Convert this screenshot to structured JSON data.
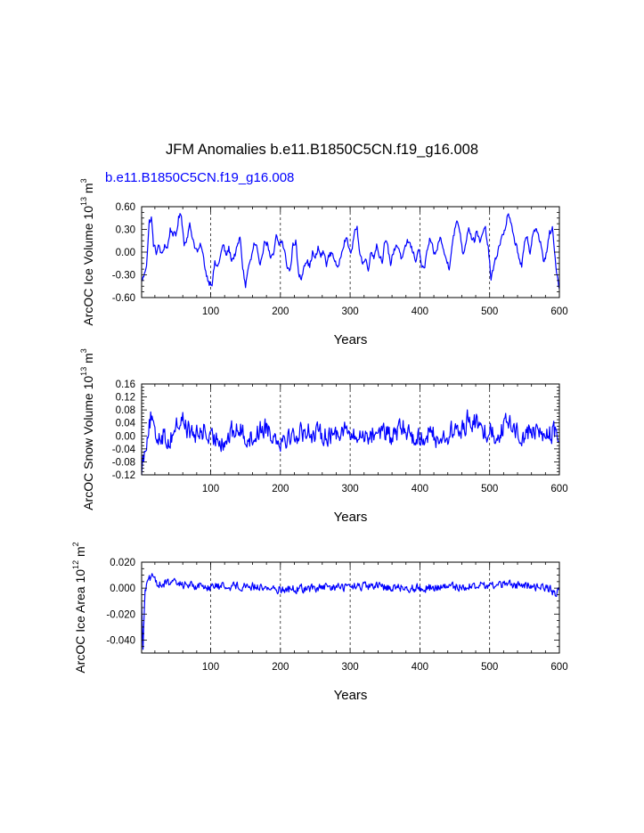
{
  "page": {
    "title": "JFM Anomalies b.e11.B1850C5CN.f19_g16.008",
    "subtitle": "b.e11.B1850C5CN.f19_g16.008"
  },
  "colors": {
    "series": "#0000ff",
    "axis": "#000000"
  },
  "chart_data": [
    {
      "type": "line",
      "name": "ice-volume",
      "ylabel_text": "ArcOC Ice Volume 10",
      "ylabel_exp": "13",
      "ylabel_unit": " m",
      "ylabel_unit_exp": "3",
      "xlabel": "Years",
      "xlim": [
        1,
        600
      ],
      "ylim": [
        -0.6,
        0.6
      ],
      "xticks": [
        100,
        200,
        300,
        400,
        500,
        600
      ],
      "xtick_labels": [
        "100",
        "200",
        "300",
        "400",
        "500",
        "600"
      ],
      "yticks": [
        -0.6,
        -0.3,
        0.0,
        0.3,
        0.6
      ],
      "ytick_labels": [
        "-0.60",
        "-0.30",
        "0.00",
        "0.30",
        "0.60"
      ],
      "gridlines_x": [
        100,
        200,
        300,
        400,
        500
      ],
      "anchors": [
        [
          1,
          -0.38
        ],
        [
          5,
          -0.3
        ],
        [
          8,
          -0.15
        ],
        [
          12,
          0.4
        ],
        [
          15,
          0.45
        ],
        [
          18,
          0.1
        ],
        [
          22,
          0.0
        ],
        [
          26,
          0.08
        ],
        [
          30,
          -0.05
        ],
        [
          34,
          0.1
        ],
        [
          38,
          0.05
        ],
        [
          42,
          0.3
        ],
        [
          46,
          0.25
        ],
        [
          50,
          0.2
        ],
        [
          54,
          0.45
        ],
        [
          58,
          0.5
        ],
        [
          62,
          0.1
        ],
        [
          66,
          0.2
        ],
        [
          70,
          0.35
        ],
        [
          74,
          0.2
        ],
        [
          78,
          0.05
        ],
        [
          82,
          0.0
        ],
        [
          86,
          0.1
        ],
        [
          90,
          -0.1
        ],
        [
          94,
          -0.3
        ],
        [
          98,
          -0.4
        ],
        [
          102,
          -0.4
        ],
        [
          106,
          -0.15
        ],
        [
          110,
          -0.2
        ],
        [
          114,
          -0.05
        ],
        [
          118,
          0.1
        ],
        [
          122,
          -0.05
        ],
        [
          126,
          0.05
        ],
        [
          130,
          -0.1
        ],
        [
          134,
          -0.05
        ],
        [
          138,
          0.05
        ],
        [
          142,
          0.2
        ],
        [
          146,
          -0.2
        ],
        [
          150,
          -0.45
        ],
        [
          154,
          -0.2
        ],
        [
          158,
          -0.1
        ],
        [
          162,
          0.1
        ],
        [
          166,
          0.05
        ],
        [
          170,
          -0.2
        ],
        [
          174,
          0.0
        ],
        [
          178,
          0.15
        ],
        [
          182,
          0.1
        ],
        [
          186,
          -0.1
        ],
        [
          190,
          -0.05
        ],
        [
          194,
          0.2
        ],
        [
          198,
          0.1
        ],
        [
          202,
          0.15
        ],
        [
          206,
          0.0
        ],
        [
          210,
          -0.2
        ],
        [
          214,
          -0.25
        ],
        [
          218,
          0.1
        ],
        [
          222,
          0.15
        ],
        [
          226,
          -0.3
        ],
        [
          230,
          -0.35
        ],
        [
          234,
          -0.15
        ],
        [
          238,
          -0.1
        ],
        [
          242,
          -0.2
        ],
        [
          246,
          0.0
        ],
        [
          250,
          -0.1
        ],
        [
          254,
          0.05
        ],
        [
          258,
          -0.05
        ],
        [
          262,
          0.0
        ],
        [
          266,
          -0.15
        ],
        [
          270,
          -0.05
        ],
        [
          274,
          0.0
        ],
        [
          278,
          -0.1
        ],
        [
          282,
          -0.25
        ],
        [
          286,
          -0.05
        ],
        [
          290,
          0.1
        ],
        [
          294,
          0.2
        ],
        [
          298,
          0.05
        ],
        [
          302,
          0.0
        ],
        [
          306,
          0.25
        ],
        [
          310,
          0.3
        ],
        [
          314,
          0.0
        ],
        [
          318,
          -0.15
        ],
        [
          322,
          -0.1
        ],
        [
          326,
          -0.2
        ],
        [
          330,
          0.0
        ],
        [
          334,
          -0.05
        ],
        [
          338,
          0.1
        ],
        [
          342,
          -0.05
        ],
        [
          346,
          -0.1
        ],
        [
          350,
          0.15
        ],
        [
          354,
          0.05
        ],
        [
          358,
          -0.15
        ],
        [
          362,
          0.0
        ],
        [
          366,
          0.1
        ],
        [
          370,
          0.05
        ],
        [
          374,
          -0.1
        ],
        [
          378,
          0.0
        ],
        [
          382,
          0.15
        ],
        [
          386,
          0.1
        ],
        [
          390,
          0.0
        ],
        [
          394,
          -0.1
        ],
        [
          398,
          0.05
        ],
        [
          402,
          -0.15
        ],
        [
          406,
          -0.25
        ],
        [
          410,
          0.0
        ],
        [
          414,
          0.15
        ],
        [
          418,
          0.05
        ],
        [
          422,
          -0.05
        ],
        [
          426,
          0.1
        ],
        [
          430,
          0.2
        ],
        [
          434,
          0.0
        ],
        [
          438,
          -0.1
        ],
        [
          442,
          -0.2
        ],
        [
          446,
          0.1
        ],
        [
          450,
          0.3
        ],
        [
          454,
          0.4
        ],
        [
          458,
          0.25
        ],
        [
          462,
          -0.05
        ],
        [
          466,
          0.15
        ],
        [
          470,
          0.35
        ],
        [
          474,
          0.2
        ],
        [
          478,
          0.15
        ],
        [
          482,
          0.3
        ],
        [
          486,
          0.1
        ],
        [
          490,
          0.25
        ],
        [
          494,
          0.3
        ],
        [
          498,
          0.05
        ],
        [
          502,
          -0.35
        ],
        [
          506,
          -0.2
        ],
        [
          510,
          -0.05
        ],
        [
          514,
          0.1
        ],
        [
          518,
          0.2
        ],
        [
          522,
          0.3
        ],
        [
          526,
          0.5
        ],
        [
          530,
          0.4
        ],
        [
          534,
          0.2
        ],
        [
          538,
          0.1
        ],
        [
          542,
          -0.05
        ],
        [
          546,
          -0.2
        ],
        [
          550,
          0.1
        ],
        [
          554,
          0.2
        ],
        [
          558,
          0.0
        ],
        [
          562,
          0.25
        ],
        [
          566,
          0.3
        ],
        [
          570,
          0.2
        ],
        [
          574,
          0.1
        ],
        [
          578,
          -0.15
        ],
        [
          582,
          0.0
        ],
        [
          586,
          0.25
        ],
        [
          590,
          0.3
        ],
        [
          594,
          -0.1
        ],
        [
          597,
          -0.3
        ],
        [
          600,
          -0.48
        ]
      ],
      "noise_amplitude": 0.06
    },
    {
      "type": "line",
      "name": "snow-volume",
      "ylabel_text": "ArcOC Snow Volume 10",
      "ylabel_exp": "13",
      "ylabel_unit": " m",
      "ylabel_unit_exp": "3",
      "xlabel": "Years",
      "xlim": [
        1,
        600
      ],
      "ylim": [
        -0.12,
        0.16
      ],
      "xticks": [
        100,
        200,
        300,
        400,
        500,
        600
      ],
      "xtick_labels": [
        "100",
        "200",
        "300",
        "400",
        "500",
        "600"
      ],
      "yticks": [
        -0.12,
        -0.08,
        -0.04,
        0.0,
        0.04,
        0.08,
        0.12,
        0.16
      ],
      "ytick_labels": [
        "-0.12",
        "-0.08",
        "-0.04",
        "0.00",
        "0.04",
        "0.08",
        "0.12",
        "0.16"
      ],
      "gridlines_x": [
        100,
        200,
        300,
        400,
        500
      ],
      "anchors": [
        [
          1,
          -0.1
        ],
        [
          5,
          -0.05
        ],
        [
          10,
          0.02
        ],
        [
          15,
          0.06
        ],
        [
          20,
          -0.01
        ],
        [
          30,
          0.01
        ],
        [
          40,
          -0.02
        ],
        [
          50,
          0.03
        ],
        [
          60,
          0.05
        ],
        [
          70,
          0.01
        ],
        [
          80,
          0.0
        ],
        [
          90,
          0.02
        ],
        [
          100,
          -0.02
        ],
        [
          110,
          0.0
        ],
        [
          120,
          -0.02
        ],
        [
          130,
          0.01
        ],
        [
          140,
          0.02
        ],
        [
          150,
          0.0
        ],
        [
          160,
          -0.01
        ],
        [
          170,
          0.02
        ],
        [
          180,
          0.03
        ],
        [
          190,
          0.0
        ],
        [
          200,
          -0.01
        ],
        [
          210,
          0.0
        ],
        [
          220,
          0.0
        ],
        [
          230,
          0.01
        ],
        [
          240,
          0.02
        ],
        [
          250,
          0.0
        ],
        [
          260,
          0.01
        ],
        [
          270,
          0.0
        ],
        [
          280,
          0.01
        ],
        [
          290,
          0.03
        ],
        [
          300,
          0.0
        ],
        [
          310,
          -0.01
        ],
        [
          320,
          0.01
        ],
        [
          330,
          0.0
        ],
        [
          340,
          0.02
        ],
        [
          350,
          0.01
        ],
        [
          360,
          -0.01
        ],
        [
          370,
          0.02
        ],
        [
          380,
          0.02
        ],
        [
          390,
          0.0
        ],
        [
          400,
          -0.01
        ],
        [
          410,
          0.01
        ],
        [
          420,
          0.0
        ],
        [
          430,
          -0.01
        ],
        [
          440,
          0.0
        ],
        [
          450,
          0.02
        ],
        [
          460,
          0.01
        ],
        [
          470,
          0.06
        ],
        [
          480,
          0.04
        ],
        [
          490,
          0.01
        ],
        [
          500,
          0.02
        ],
        [
          510,
          0.0
        ],
        [
          520,
          0.03
        ],
        [
          530,
          0.04
        ],
        [
          540,
          0.01
        ],
        [
          550,
          0.0
        ],
        [
          560,
          0.02
        ],
        [
          570,
          0.01
        ],
        [
          580,
          0.0
        ],
        [
          590,
          0.01
        ],
        [
          600,
          0.0
        ]
      ],
      "noise_amplitude": 0.045
    },
    {
      "type": "line",
      "name": "ice-area",
      "ylabel_text": "ArcOC Ice Area 10",
      "ylabel_exp": "12",
      "ylabel_unit": " m",
      "ylabel_unit_exp": "2",
      "xlabel": "Years",
      "xlim": [
        1,
        600
      ],
      "ylim": [
        -0.05,
        0.02
      ],
      "xticks": [
        100,
        200,
        300,
        400,
        500,
        600
      ],
      "xtick_labels": [
        "100",
        "200",
        "300",
        "400",
        "500",
        "600"
      ],
      "yticks": [
        -0.04,
        -0.02,
        0.0,
        0.02
      ],
      "ytick_labels": [
        "-0.040",
        "-0.020",
        "0.000",
        "0.020"
      ],
      "gridlines_x": [
        100,
        200,
        300,
        400,
        500
      ],
      "anchors": [
        [
          1,
          -0.01
        ],
        [
          3,
          -0.048
        ],
        [
          6,
          0.0
        ],
        [
          10,
          0.004
        ],
        [
          15,
          0.009
        ],
        [
          20,
          0.005
        ],
        [
          30,
          0.003
        ],
        [
          40,
          0.004
        ],
        [
          60,
          0.003
        ],
        [
          80,
          0.002
        ],
        [
          100,
          0.001
        ],
        [
          150,
          0.002
        ],
        [
          200,
          -0.001
        ],
        [
          250,
          0.0
        ],
        [
          300,
          0.001
        ],
        [
          350,
          0.001
        ],
        [
          400,
          0.0
        ],
        [
          450,
          0.001
        ],
        [
          500,
          0.002
        ],
        [
          520,
          0.003
        ],
        [
          550,
          0.002
        ],
        [
          580,
          0.001
        ],
        [
          595,
          -0.004
        ],
        [
          600,
          -0.002
        ]
      ],
      "noise_amplitude": 0.0045
    }
  ]
}
